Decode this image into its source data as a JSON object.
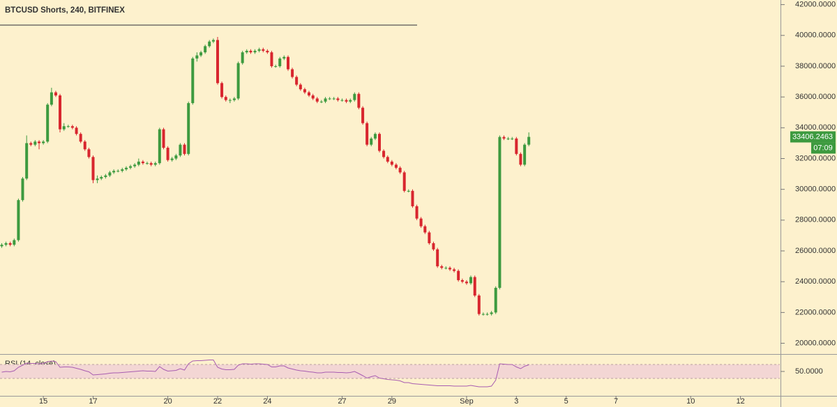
{
  "chart_data": [
    {
      "type": "candlestick",
      "title": "BTCUSD Shorts, 240, BITFINEX",
      "x": [
        13.33,
        13.5,
        13.67,
        13.83,
        14,
        14.17,
        14.33,
        14.5,
        14.67,
        14.83,
        15,
        15.17,
        15.33,
        15.5,
        15.67,
        15.83,
        16,
        16.17,
        16.33,
        16.5,
        16.67,
        16.83,
        17,
        17.17,
        17.33,
        17.5,
        17.67,
        17.83,
        18,
        18.17,
        18.33,
        18.5,
        18.67,
        18.83,
        19,
        19.17,
        19.33,
        19.5,
        19.67,
        19.83,
        20,
        20.17,
        20.33,
        20.5,
        20.67,
        20.83,
        21,
        21.17,
        21.33,
        21.5,
        21.67,
        21.83,
        22,
        22.17,
        22.33,
        22.5,
        22.67,
        22.83,
        23,
        23.17,
        23.33,
        23.5,
        23.67,
        23.83,
        24,
        24.17,
        24.33,
        24.5,
        24.67,
        24.83,
        25,
        25.17,
        25.33,
        25.5,
        25.67,
        25.83,
        26,
        26.17,
        26.33,
        26.5,
        26.67,
        26.83,
        27,
        27.17,
        27.33,
        27.5,
        27.67,
        27.83,
        28,
        28.17,
        28.33,
        28.5,
        28.67,
        28.83,
        29,
        29.17,
        29.33,
        29.5,
        29.67,
        29.83,
        30,
        30.17,
        30.33,
        30.5,
        30.67,
        30.83,
        31,
        31.17,
        31.33,
        31.5,
        31.67,
        31.83,
        32,
        32.17,
        32.33,
        32.5,
        32.67,
        32.83,
        33,
        33.17,
        33.33,
        33.5,
        33.67,
        33.83,
        34,
        34.17,
        34.33,
        34.5
      ],
      "open": [
        26300,
        26400,
        26500,
        26400,
        26700,
        29300,
        30700,
        33000,
        32900,
        33100,
        33000,
        33100,
        35500,
        36300,
        36100,
        33900,
        34100,
        34100,
        34000,
        33600,
        33100,
        32600,
        32100,
        30600,
        30700,
        30800,
        30900,
        31100,
        31200,
        31200,
        31300,
        31400,
        31500,
        31600,
        31800,
        31700,
        31700,
        31600,
        31700,
        33900,
        32700,
        31900,
        32000,
        32200,
        32900,
        32300,
        35600,
        38500,
        38700,
        38900,
        39300,
        39600,
        39700,
        36900,
        36000,
        35800,
        35800,
        35900,
        38200,
        38900,
        39000,
        38900,
        39000,
        39100,
        39000,
        38900,
        38000,
        38000,
        38500,
        38600,
        37800,
        37300,
        36800,
        36500,
        36300,
        36100,
        35900,
        35700,
        35700,
        35900,
        35900,
        35900,
        35800,
        35800,
        35700,
        35800,
        36200,
        35300,
        34300,
        32900,
        33300,
        33600,
        32500,
        32100,
        31800,
        31600,
        31400,
        31100,
        29900,
        29900,
        28900,
        28100,
        27600,
        27200,
        26500,
        26100,
        25000,
        24900,
        24900,
        24800,
        24700,
        24100,
        24000,
        23900,
        24300,
        23100,
        21900,
        21900,
        21900,
        22000,
        23600,
        33400,
        33300,
        33300,
        33300,
        32300,
        31600,
        32900
      ],
      "high": [
        26500,
        26600,
        26600,
        26800,
        29400,
        30800,
        33500,
        33100,
        33200,
        33200,
        33200,
        35600,
        36600,
        36400,
        36200,
        34300,
        34200,
        34200,
        34100,
        33700,
        33200,
        32700,
        32200,
        30900,
        30900,
        31000,
        31200,
        31300,
        31300,
        31400,
        31500,
        31600,
        31700,
        32000,
        31900,
        31800,
        31800,
        31800,
        34000,
        34000,
        32800,
        32100,
        32300,
        33000,
        33000,
        35700,
        38600,
        38900,
        39000,
        39400,
        39700,
        39800,
        39900,
        37000,
        36100,
        35900,
        36000,
        38300,
        39000,
        39100,
        39100,
        39100,
        39200,
        39200,
        39100,
        39000,
        38100,
        38600,
        38700,
        38700,
        37900,
        37400,
        36900,
        36600,
        36400,
        36200,
        36000,
        35800,
        36000,
        36000,
        36000,
        36000,
        35900,
        35900,
        35900,
        36300,
        36300,
        35400,
        34400,
        33400,
        33700,
        33700,
        32600,
        32200,
        31900,
        31700,
        31500,
        31200,
        30000,
        30000,
        29000,
        28200,
        27700,
        27300,
        26600,
        26200,
        25100,
        25000,
        25000,
        24900,
        24800,
        24200,
        24100,
        24400,
        24400,
        23200,
        22000,
        22000,
        22100,
        23700,
        33500,
        33500,
        33400,
        33400,
        33400,
        32400,
        33000,
        33700
      ],
      "low": [
        26200,
        26300,
        26300,
        26300,
        26600,
        29200,
        30600,
        32800,
        32800,
        32600,
        32900,
        33000,
        35400,
        36000,
        33700,
        33800,
        34000,
        33900,
        33500,
        33000,
        32500,
        32000,
        30400,
        30400,
        30600,
        30700,
        30800,
        31000,
        31100,
        31100,
        31200,
        31300,
        31400,
        31500,
        31600,
        31600,
        31500,
        31500,
        31600,
        32600,
        31800,
        31800,
        31900,
        32100,
        32200,
        32200,
        35500,
        38300,
        38600,
        38800,
        39200,
        39500,
        36800,
        35900,
        35700,
        35600,
        35700,
        35800,
        38100,
        38800,
        38800,
        38800,
        38900,
        38900,
        38800,
        37900,
        37900,
        37900,
        38400,
        37700,
        37200,
        36700,
        36400,
        36200,
        36000,
        35800,
        35600,
        35600,
        35600,
        35800,
        35800,
        35700,
        35700,
        35600,
        35600,
        35700,
        35200,
        34200,
        32800,
        32800,
        33200,
        32400,
        32000,
        31700,
        31500,
        31300,
        31000,
        29800,
        29800,
        28800,
        28000,
        27500,
        27100,
        26400,
        26000,
        24900,
        24800,
        24800,
        24700,
        24600,
        24000,
        23900,
        23800,
        23800,
        23000,
        21800,
        21800,
        21800,
        21800,
        21900,
        23500,
        33200,
        33200,
        33200,
        32200,
        31500,
        31500,
        32800
      ],
      "close": [
        26400,
        26500,
        26400,
        26700,
        29300,
        30700,
        33000,
        32900,
        33100,
        33000,
        33100,
        35500,
        36300,
        36100,
        33900,
        34100,
        34100,
        34000,
        33600,
        33100,
        32600,
        32100,
        30600,
        30700,
        30800,
        30900,
        31100,
        31200,
        31200,
        31300,
        31400,
        31500,
        31600,
        31800,
        31700,
        31700,
        31600,
        31700,
        33900,
        32700,
        31900,
        32000,
        32200,
        32900,
        32300,
        35600,
        38500,
        38700,
        38900,
        39300,
        39600,
        39700,
        36900,
        36000,
        35800,
        35800,
        35900,
        38200,
        38900,
        39000,
        38900,
        39000,
        39100,
        39000,
        38900,
        38000,
        38000,
        38500,
        38600,
        37800,
        37300,
        36800,
        36500,
        36300,
        36100,
        35900,
        35700,
        35700,
        35900,
        35900,
        35900,
        35800,
        35800,
        35700,
        35800,
        36200,
        35300,
        34300,
        32900,
        33300,
        33600,
        32500,
        32100,
        31800,
        31600,
        31400,
        31100,
        29900,
        29900,
        28900,
        28100,
        27600,
        27200,
        26500,
        26100,
        25000,
        24900,
        24900,
        24800,
        24700,
        24100,
        24000,
        23900,
        24300,
        23100,
        21900,
        21900,
        21900,
        22000,
        23600,
        33400,
        33300,
        33300,
        33300,
        32300,
        31600,
        32900,
        33406.2463
      ],
      "up_color": "#3d9a3f",
      "down_color": "#d8262e",
      "xlim": [
        13.26,
        44.58
      ],
      "xticks": [
        15,
        17,
        20,
        22,
        24,
        27,
        29,
        {
          "value": 32,
          "label": "Sep"
        },
        {
          "value": 34,
          "label": "3"
        },
        {
          "value": 36,
          "label": "5"
        },
        {
          "value": 38,
          "label": "7"
        },
        {
          "value": 41,
          "label": "10"
        },
        {
          "value": 43,
          "label": "12"
        }
      ],
      "ylim": [
        19300,
        42300
      ],
      "yticks": [
        {
          "value": 20000,
          "label": "20000.0000"
        },
        {
          "value": 22000,
          "label": "22000.0000"
        },
        {
          "value": 24000,
          "label": "24000.0000"
        },
        {
          "value": 26000,
          "label": "26000.0000"
        },
        {
          "value": 28000,
          "label": "28000.0000"
        },
        {
          "value": 30000,
          "label": "30000.0000"
        },
        {
          "value": 32000,
          "label": "32000.0000"
        },
        {
          "value": 34000,
          "label": "34000.0000"
        },
        {
          "value": 36000,
          "label": "36000.0000"
        },
        {
          "value": 38000,
          "label": "38000.0000"
        },
        {
          "value": 40000,
          "label": "40000.0000"
        },
        {
          "value": 42000,
          "label": "42000.0000"
        }
      ],
      "countdown": "07:09"
    },
    {
      "type": "line",
      "title": "RSI (14, close)",
      "color": "#a85cb0",
      "values": [
        48,
        50,
        49,
        52,
        62,
        68,
        74,
        73,
        73,
        72,
        73,
        78,
        80,
        78,
        62,
        63,
        63,
        62,
        59,
        56,
        52,
        49,
        40,
        41,
        42,
        43,
        45,
        46,
        46,
        47,
        48,
        49,
        50,
        51,
        52,
        51,
        51,
        50,
        64,
        56,
        51,
        52,
        53,
        58,
        54,
        72,
        80,
        81,
        81,
        82,
        83,
        83,
        62,
        57,
        55,
        55,
        56,
        68,
        72,
        72,
        71,
        72,
        72,
        71,
        70,
        63,
        63,
        66,
        66,
        60,
        57,
        54,
        52,
        51,
        49,
        48,
        46,
        46,
        48,
        48,
        48,
        47,
        47,
        46,
        47,
        50,
        44,
        38,
        31,
        35,
        38,
        31,
        29,
        27,
        26,
        25,
        23,
        18,
        18,
        15,
        14,
        13,
        12,
        11,
        10,
        9,
        9,
        9,
        9,
        8,
        8,
        8,
        8,
        10,
        8,
        6,
        6,
        6,
        8,
        25,
        72,
        71,
        70,
        70,
        63,
        58,
        65,
        69
      ],
      "ylim": [
        -20,
        100
      ],
      "yticks": [
        {
          "value": 50,
          "label": "50.0000"
        }
      ],
      "band": [
        30,
        70
      ],
      "band_color": "#f3d6d4"
    }
  ]
}
